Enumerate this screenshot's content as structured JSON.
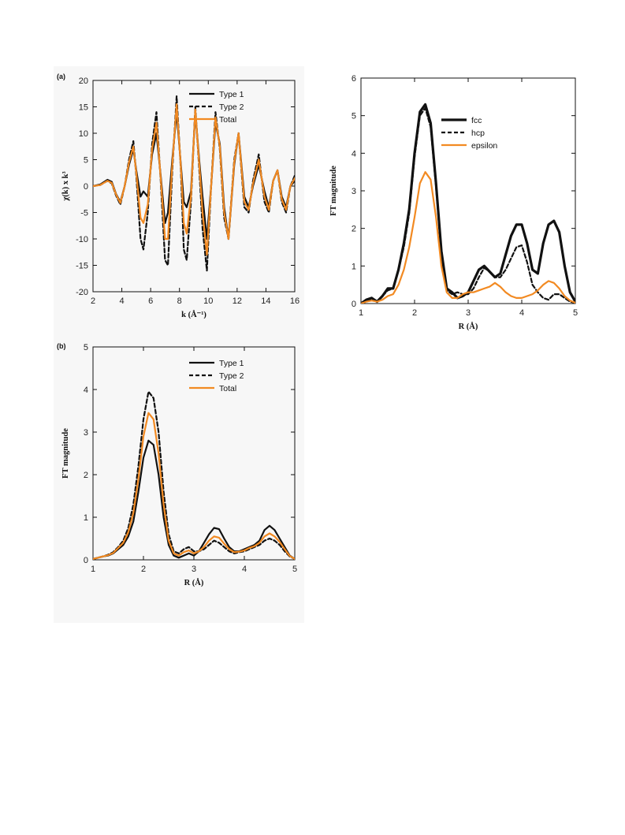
{
  "colors": {
    "type1": "#111111",
    "type2": "#111111",
    "total": "#f28a22"
  },
  "chart_data": [
    {
      "id": "a",
      "type": "line",
      "panel_label": "(a)",
      "xlabel": "k (Å⁻¹)",
      "ylabel": "χ(k) x k³",
      "xlim": [
        2,
        16
      ],
      "ylim": [
        -20,
        20
      ],
      "xticks": [
        2,
        4,
        6,
        8,
        10,
        12,
        14,
        16
      ],
      "yticks": [
        -20,
        -15,
        -10,
        -5,
        0,
        5,
        10,
        15,
        20
      ],
      "legend": "top-right",
      "series": [
        {
          "name": "Type 1",
          "style": "solid",
          "color": "#111111",
          "width": 2.2,
          "x": [
            2.0,
            2.5,
            3.0,
            3.3,
            3.6,
            3.9,
            4.2,
            4.5,
            4.8,
            5.0,
            5.3,
            5.5,
            5.8,
            6.1,
            6.4,
            6.7,
            7.0,
            7.2,
            7.5,
            7.8,
            8.1,
            8.3,
            8.5,
            8.8,
            9.1,
            9.4,
            9.6,
            9.9,
            10.2,
            10.5,
            10.8,
            11.1,
            11.4,
            11.8,
            12.1,
            12.5,
            12.8,
            13.1,
            13.5,
            13.9,
            14.2,
            14.5,
            14.8,
            15.1,
            15.4,
            15.7,
            16.0
          ],
          "y": [
            0,
            0.3,
            1.2,
            0.8,
            -1.5,
            -3,
            0,
            4,
            7,
            3,
            -2,
            -1,
            -2,
            6,
            10,
            2,
            -7,
            -5,
            5,
            14,
            4,
            -3,
            -4,
            -1,
            14,
            4,
            -2,
            -10,
            0,
            12,
            8,
            -4,
            -10,
            4,
            10,
            -2,
            -4,
            0,
            4,
            -1,
            -4,
            1,
            3,
            -2,
            -4,
            0,
            1
          ]
        },
        {
          "name": "Type 2",
          "style": "dashed",
          "color": "#111111",
          "width": 2.2,
          "x": [
            2.0,
            2.5,
            3.0,
            3.3,
            3.6,
            3.9,
            4.2,
            4.5,
            4.8,
            5.0,
            5.3,
            5.5,
            5.8,
            6.1,
            6.4,
            6.7,
            7.0,
            7.2,
            7.5,
            7.8,
            8.1,
            8.3,
            8.5,
            8.8,
            9.1,
            9.4,
            9.6,
            9.9,
            10.2,
            10.5,
            10.8,
            11.1,
            11.4,
            11.8,
            12.1,
            12.5,
            12.8,
            13.1,
            13.5,
            13.9,
            14.2,
            14.5,
            14.8,
            15.1,
            15.4,
            15.7,
            16.0
          ],
          "y": [
            0,
            0.2,
            1,
            0.5,
            -1.8,
            -3.5,
            0,
            5,
            8.5,
            2,
            -10,
            -12,
            -5,
            8,
            14,
            1,
            -14,
            -15,
            3,
            17,
            3,
            -12,
            -14,
            -3,
            15,
            2,
            -8,
            -16,
            0,
            14,
            7,
            -6,
            -10,
            5,
            10,
            -4,
            -5,
            1,
            6,
            -3,
            -5,
            1,
            3,
            -3,
            -5,
            0,
            2
          ]
        },
        {
          "name": "Total",
          "style": "solid",
          "color": "#f28a22",
          "width": 2.2,
          "x": [
            2.0,
            2.5,
            3.0,
            3.3,
            3.6,
            3.9,
            4.2,
            4.5,
            4.8,
            5.0,
            5.3,
            5.5,
            5.8,
            6.1,
            6.4,
            6.7,
            7.0,
            7.2,
            7.5,
            7.8,
            8.1,
            8.3,
            8.5,
            8.8,
            9.1,
            9.4,
            9.6,
            9.9,
            10.2,
            10.5,
            10.8,
            11.1,
            11.4,
            11.8,
            12.1,
            12.5,
            12.8,
            13.1,
            13.5,
            13.9,
            14.2,
            14.5,
            14.8,
            15.1,
            15.4,
            15.7,
            16.0
          ],
          "y": [
            0,
            0.2,
            1,
            0.6,
            -1.6,
            -3.2,
            0,
            4.5,
            7.5,
            2.5,
            -6,
            -7,
            -3.5,
            7,
            12,
            1.5,
            -10,
            -10,
            4,
            15.5,
            3.5,
            -7,
            -9,
            -2,
            14.5,
            3,
            -5,
            -13,
            0,
            13,
            7.5,
            -5,
            -10,
            4.5,
            10,
            -3,
            -4.5,
            0.5,
            5,
            -2,
            -4.5,
            1,
            3,
            -2.5,
            -4.5,
            0,
            1.5
          ]
        }
      ],
      "legend_entries": [
        "Type 1",
        "Type 2",
        "Total"
      ]
    },
    {
      "id": "c",
      "type": "line",
      "panel_label": "",
      "xlabel": "R (Å)",
      "ylabel": "FT magnitude",
      "xlim": [
        1,
        5
      ],
      "ylim": [
        0,
        6
      ],
      "xticks": [
        1,
        2,
        3,
        4,
        5
      ],
      "yticks": [
        0,
        1,
        2,
        3,
        4,
        5,
        6
      ],
      "legend": "top-right",
      "series": [
        {
          "name": "fcc",
          "style": "solid",
          "color": "#111111",
          "width": 3.2,
          "x": [
            1.0,
            1.1,
            1.2,
            1.3,
            1.4,
            1.5,
            1.6,
            1.7,
            1.8,
            1.9,
            2.0,
            2.1,
            2.2,
            2.3,
            2.4,
            2.5,
            2.6,
            2.7,
            2.8,
            2.9,
            3.0,
            3.1,
            3.2,
            3.3,
            3.4,
            3.5,
            3.6,
            3.7,
            3.8,
            3.9,
            4.0,
            4.1,
            4.2,
            4.3,
            4.4,
            4.5,
            4.6,
            4.7,
            4.8,
            4.9,
            5.0
          ],
          "y": [
            0,
            0.1,
            0.15,
            0.05,
            0.2,
            0.4,
            0.4,
            0.9,
            1.6,
            2.5,
            4.0,
            5.1,
            5.3,
            4.8,
            3.2,
            1.4,
            0.4,
            0.3,
            0.15,
            0.2,
            0.3,
            0.6,
            0.9,
            1.0,
            0.85,
            0.7,
            0.8,
            1.3,
            1.8,
            2.1,
            2.1,
            1.6,
            0.9,
            0.8,
            1.6,
            2.1,
            2.2,
            1.9,
            1.0,
            0.3,
            0.05
          ]
        },
        {
          "name": "hcp",
          "style": "dashed",
          "color": "#111111",
          "width": 2.2,
          "x": [
            1.0,
            1.1,
            1.2,
            1.3,
            1.4,
            1.5,
            1.6,
            1.7,
            1.8,
            1.9,
            2.0,
            2.1,
            2.2,
            2.3,
            2.4,
            2.5,
            2.6,
            2.7,
            2.8,
            2.9,
            3.0,
            3.1,
            3.2,
            3.3,
            3.4,
            3.5,
            3.6,
            3.7,
            3.8,
            3.9,
            4.0,
            4.1,
            4.2,
            4.3,
            4.4,
            4.5,
            4.6,
            4.7,
            4.8,
            4.9,
            5.0
          ],
          "y": [
            0,
            0.05,
            0.1,
            0.05,
            0.2,
            0.35,
            0.4,
            0.9,
            1.5,
            2.4,
            3.9,
            5.0,
            5.2,
            4.7,
            3.1,
            1.3,
            0.35,
            0.25,
            0.3,
            0.25,
            0.25,
            0.4,
            0.7,
            0.95,
            0.85,
            0.7,
            0.7,
            0.9,
            1.2,
            1.5,
            1.55,
            1.1,
            0.5,
            0.3,
            0.15,
            0.1,
            0.25,
            0.25,
            0.15,
            0.05,
            0.02
          ]
        },
        {
          "name": "epsilon",
          "style": "solid",
          "color": "#f28a22",
          "width": 2.2,
          "x": [
            1.0,
            1.1,
            1.2,
            1.3,
            1.4,
            1.5,
            1.6,
            1.7,
            1.8,
            1.9,
            2.0,
            2.1,
            2.2,
            2.3,
            2.4,
            2.5,
            2.6,
            2.7,
            2.8,
            2.9,
            3.0,
            3.1,
            3.2,
            3.3,
            3.4,
            3.5,
            3.6,
            3.7,
            3.8,
            3.9,
            4.0,
            4.1,
            4.2,
            4.3,
            4.4,
            4.5,
            4.6,
            4.7,
            4.8,
            4.9,
            5.0
          ],
          "y": [
            0,
            0.05,
            0.08,
            0.05,
            0.1,
            0.2,
            0.25,
            0.5,
            0.9,
            1.5,
            2.3,
            3.2,
            3.5,
            3.3,
            2.3,
            1.0,
            0.3,
            0.15,
            0.15,
            0.25,
            0.3,
            0.3,
            0.35,
            0.4,
            0.45,
            0.55,
            0.45,
            0.3,
            0.2,
            0.15,
            0.15,
            0.2,
            0.25,
            0.35,
            0.5,
            0.6,
            0.55,
            0.4,
            0.2,
            0.08,
            0.02
          ]
        }
      ],
      "legend_entries": [
        "fcc",
        "hcp",
        "epsilon"
      ]
    },
    {
      "id": "b",
      "type": "line",
      "panel_label": "(b)",
      "xlabel": "R (Å)",
      "ylabel": "FT magnitude",
      "xlim": [
        1,
        5
      ],
      "ylim": [
        0,
        5
      ],
      "xticks": [
        1,
        2,
        3,
        4,
        5
      ],
      "yticks": [
        0,
        1,
        2,
        3,
        4,
        5
      ],
      "legend": "top-right",
      "series": [
        {
          "name": "Type 1",
          "style": "solid",
          "color": "#111111",
          "width": 2.2,
          "x": [
            1.0,
            1.1,
            1.2,
            1.3,
            1.4,
            1.5,
            1.6,
            1.7,
            1.8,
            1.9,
            2.0,
            2.1,
            2.2,
            2.3,
            2.4,
            2.5,
            2.6,
            2.7,
            2.8,
            2.9,
            3.0,
            3.1,
            3.2,
            3.3,
            3.4,
            3.5,
            3.6,
            3.7,
            3.8,
            3.9,
            4.0,
            4.1,
            4.2,
            4.3,
            4.4,
            4.5,
            4.6,
            4.7,
            4.8,
            4.9,
            5.0
          ],
          "y": [
            0.02,
            0.05,
            0.08,
            0.1,
            0.15,
            0.25,
            0.35,
            0.55,
            0.9,
            1.6,
            2.4,
            2.8,
            2.7,
            2.0,
            1.0,
            0.35,
            0.1,
            0.05,
            0.1,
            0.15,
            0.1,
            0.2,
            0.4,
            0.6,
            0.75,
            0.72,
            0.5,
            0.3,
            0.2,
            0.2,
            0.25,
            0.3,
            0.35,
            0.45,
            0.7,
            0.8,
            0.7,
            0.5,
            0.3,
            0.1,
            0.02
          ]
        },
        {
          "name": "Type 2",
          "style": "dashed",
          "color": "#111111",
          "width": 2.2,
          "x": [
            1.0,
            1.1,
            1.2,
            1.3,
            1.4,
            1.5,
            1.6,
            1.7,
            1.8,
            1.9,
            2.0,
            2.1,
            2.2,
            2.3,
            2.4,
            2.5,
            2.6,
            2.7,
            2.8,
            2.9,
            3.0,
            3.1,
            3.2,
            3.3,
            3.4,
            3.5,
            3.6,
            3.7,
            3.8,
            3.9,
            4.0,
            4.1,
            4.2,
            4.3,
            4.4,
            4.5,
            4.6,
            4.7,
            4.8,
            4.9,
            5.0
          ],
          "y": [
            0.02,
            0.05,
            0.08,
            0.12,
            0.18,
            0.3,
            0.45,
            0.75,
            1.3,
            2.2,
            3.3,
            3.95,
            3.8,
            3.0,
            1.6,
            0.6,
            0.2,
            0.15,
            0.25,
            0.3,
            0.2,
            0.2,
            0.25,
            0.35,
            0.45,
            0.4,
            0.3,
            0.2,
            0.15,
            0.18,
            0.2,
            0.25,
            0.3,
            0.35,
            0.45,
            0.5,
            0.45,
            0.35,
            0.2,
            0.08,
            0.02
          ]
        },
        {
          "name": "Total",
          "style": "solid",
          "color": "#f28a22",
          "width": 2.2,
          "x": [
            1.0,
            1.1,
            1.2,
            1.3,
            1.4,
            1.5,
            1.6,
            1.7,
            1.8,
            1.9,
            2.0,
            2.1,
            2.2,
            2.3,
            2.4,
            2.5,
            2.6,
            2.7,
            2.8,
            2.9,
            3.0,
            3.1,
            3.2,
            3.3,
            3.4,
            3.5,
            3.6,
            3.7,
            3.8,
            3.9,
            4.0,
            4.1,
            4.2,
            4.3,
            4.4,
            4.5,
            4.6,
            4.7,
            4.8,
            4.9,
            5.0
          ],
          "y": [
            0.02,
            0.05,
            0.08,
            0.11,
            0.16,
            0.28,
            0.4,
            0.65,
            1.1,
            1.9,
            2.9,
            3.45,
            3.3,
            2.5,
            1.3,
            0.45,
            0.15,
            0.1,
            0.18,
            0.22,
            0.15,
            0.2,
            0.3,
            0.45,
            0.55,
            0.52,
            0.38,
            0.25,
            0.18,
            0.19,
            0.22,
            0.28,
            0.32,
            0.4,
            0.55,
            0.62,
            0.55,
            0.42,
            0.25,
            0.09,
            0.02
          ]
        }
      ],
      "legend_entries": [
        "Type 1",
        "Type 2",
        "Total"
      ]
    }
  ]
}
